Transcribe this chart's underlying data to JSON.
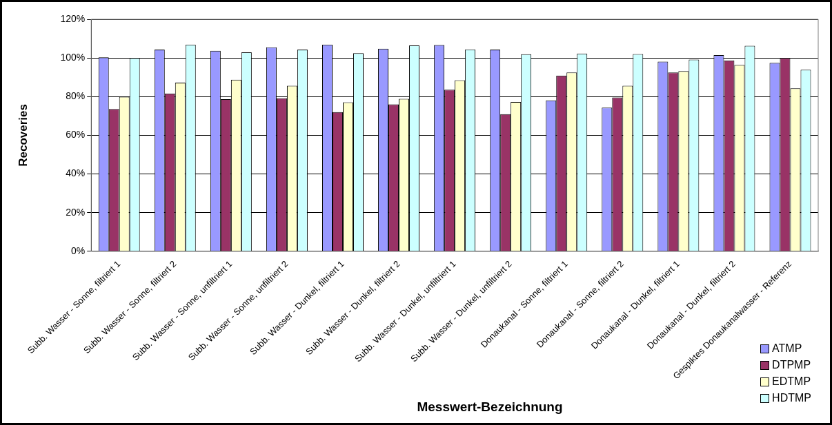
{
  "chart_data": {
    "type": "bar",
    "xlabel": "Messwert-Bezeichnung",
    "ylabel": "Recoveries",
    "categories": [
      "Subb. Wasser - Sonne, filtriert 1",
      "Subb. Wasser - Sonne, filtriert 2",
      "Subb. Wasser - Sonne, unfiltriert 1",
      "Subb. Wasser - Sonne, unfiltriert 2",
      "Subb. Wasser - Dunkel, filtriert 1",
      "Subb. Wasser - Dunkel, filtriert 2",
      "Subb. Wasser - Dunkel, unfiltriert 1",
      "Subb. Wasser - Dunkel, unfiltriert 2",
      "Donaukanal - Sonne, filtriert 1",
      "Donaukanal - Sonne, filtriert 2",
      "Donaukanal - Dunkel, filtriert 1",
      "Donaukanal - Dunkel, filtriert 2",
      "Gespiktes Donaukanalwasser - Referenz"
    ],
    "series": [
      {
        "name": "ATMP",
        "color": "#9999ff",
        "values": [
          100.3,
          104.3,
          103.7,
          105.6,
          106.9,
          104.8,
          106.7,
          104.3,
          78.1,
          74.3,
          98.1,
          101.5,
          97.5
        ]
      },
      {
        "name": "DTPMP",
        "color": "#993366",
        "values": [
          73.6,
          81.6,
          78.7,
          79.2,
          72.0,
          76.0,
          83.6,
          70.9,
          90.9,
          79.6,
          92.5,
          98.7,
          100.0
        ]
      },
      {
        "name": "EDTMP",
        "color": "#ffffcc",
        "values": [
          79.9,
          87.2,
          88.7,
          85.6,
          77.1,
          78.9,
          88.5,
          77.3,
          92.5,
          85.6,
          93.2,
          96.4,
          84.3
        ]
      },
      {
        "name": "HDTMP",
        "color": "#ccffff",
        "values": [
          100.0,
          106.9,
          102.9,
          104.3,
          102.5,
          106.5,
          104.4,
          101.9,
          102.3,
          102.0,
          99.2,
          106.3,
          93.9
        ]
      }
    ],
    "ylim": [
      0,
      120
    ],
    "yticks": [
      {
        "value": 0,
        "label": "0%"
      },
      {
        "value": 20,
        "label": "20%"
      },
      {
        "value": 40,
        "label": "40%"
      },
      {
        "value": 60,
        "label": "60%"
      },
      {
        "value": 80,
        "label": "80%"
      },
      {
        "value": 100,
        "label": "100%"
      },
      {
        "value": 120,
        "label": "120%"
      }
    ],
    "grid": "y",
    "legend": "bottom right"
  }
}
